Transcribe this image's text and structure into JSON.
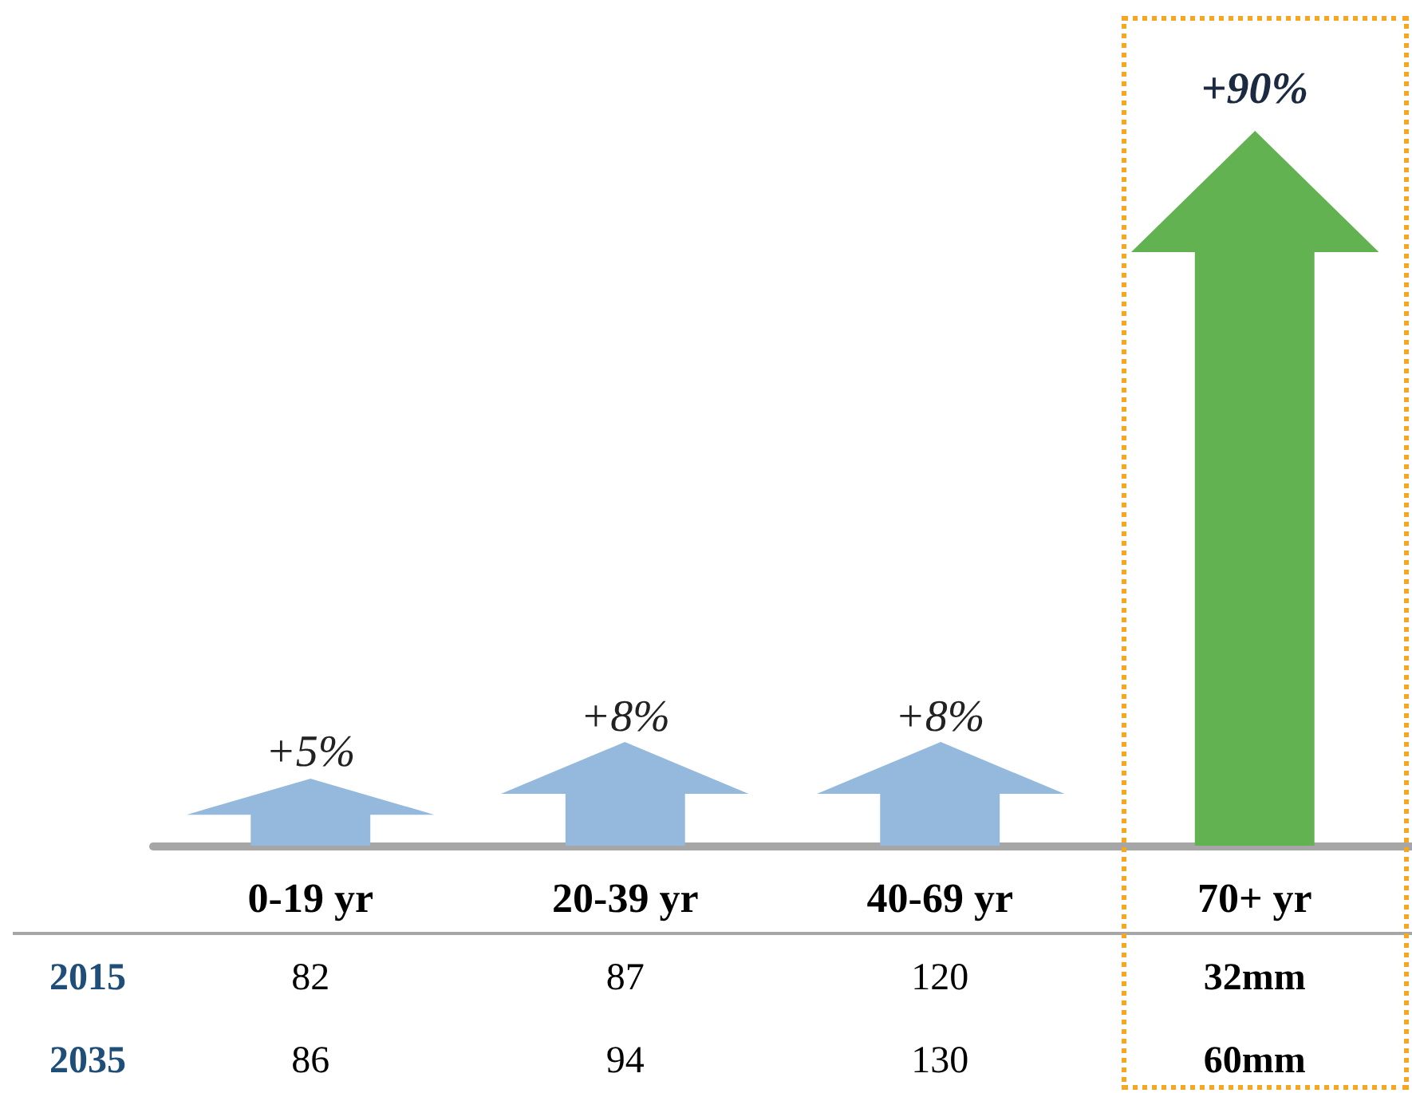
{
  "chart_data": {
    "type": "bar",
    "categories": [
      "0-19 yr",
      "20-39 yr",
      "40-69 yr",
      "70+ yr"
    ],
    "values": [
      5,
      8,
      8,
      90
    ],
    "value_labels": [
      "+5%",
      "+8%",
      "+8%",
      "+90%"
    ],
    "colors": [
      "#95b9dc",
      "#95b9dc",
      "#95b9dc",
      "#63b251"
    ],
    "annotations": [
      "2015",
      "82",
      "87",
      "120",
      "32mm",
      "2035",
      "86",
      "94",
      "130",
      "60mm"
    ]
  }
}
